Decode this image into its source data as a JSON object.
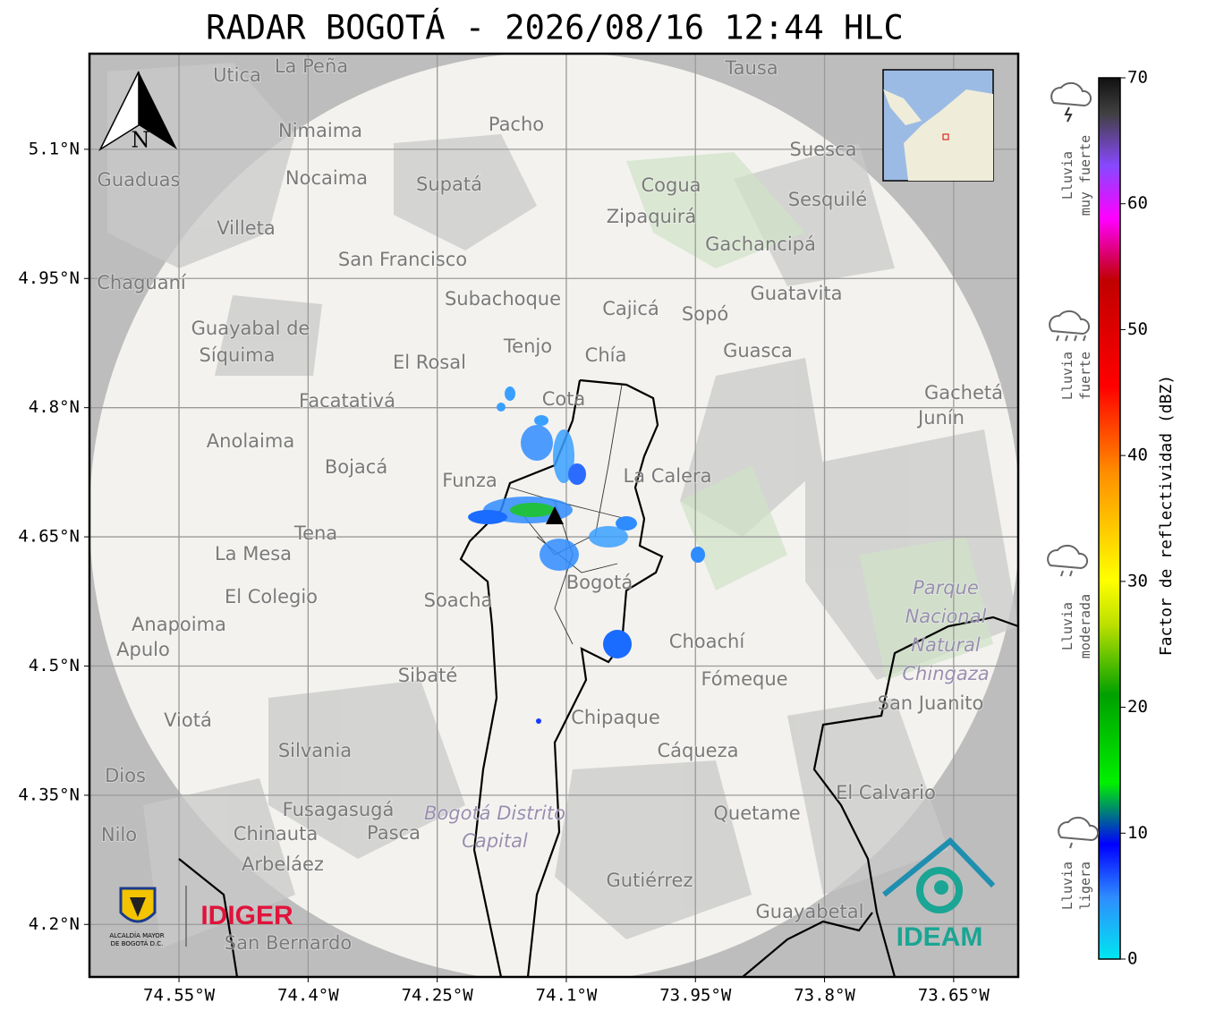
{
  "title": "RADAR BOGOTÁ - 2026/08/16 12:44 HLC",
  "map": {
    "lonlim": [
      -74.654,
      -73.575
    ],
    "latlim": [
      4.139,
      5.211
    ],
    "lon_ticks": [
      {
        "value": -74.55,
        "label": "74.55°W"
      },
      {
        "value": -74.4,
        "label": "74.4°W"
      },
      {
        "value": -74.25,
        "label": "74.25°W"
      },
      {
        "value": -74.1,
        "label": "74.1°W"
      },
      {
        "value": -73.95,
        "label": "73.95°W"
      },
      {
        "value": -73.8,
        "label": "73.8°W"
      },
      {
        "value": -73.65,
        "label": "73.65°W"
      }
    ],
    "lat_ticks": [
      {
        "value": 5.1,
        "label": "5.1°N"
      },
      {
        "value": 4.95,
        "label": "4.95°N"
      },
      {
        "value": 4.8,
        "label": "4.8°N"
      },
      {
        "value": 4.65,
        "label": "4.65°N"
      },
      {
        "value": 4.5,
        "label": "4.5°N"
      },
      {
        "value": 4.35,
        "label": "4.35°N"
      },
      {
        "value": 4.2,
        "label": "4.2°N"
      }
    ],
    "north": "N",
    "places": [
      "La Peña",
      "Utica",
      "Tausa",
      "Pacho",
      "Nimaima",
      "Nocaima",
      "Supatá",
      "Guaduas",
      "Suesca",
      "Cogua",
      "Sesquilé",
      "Zipaquirá",
      "Villeta",
      "Gachancipá",
      "San Francisco",
      "Chaguaní",
      "Guatavita",
      "Subachoque",
      "Cajicá",
      "Sopó",
      "Guayabal de",
      "Síquima",
      "Tenjo",
      "Chía",
      "Guasca",
      "El Rosal",
      "Facatativá",
      "Cota",
      "Gachetá",
      "Junín",
      "Anolaima",
      "Bojacá",
      "Funza",
      "La Calera",
      "Tena",
      "La Mesa",
      "Bogotá",
      "Soacha",
      "Parque",
      "Nacional",
      "Natural",
      "Chingaza",
      "El Colegio",
      "Anapoima",
      "Apulo",
      "Choachí",
      "Fómeque",
      "Sibaté",
      "San Juanito",
      "Viotá",
      "Chipaque",
      "Silvania",
      "Cáqueza",
      "Dios",
      "Fusagasugá",
      "Bogotá Distrito",
      "Capital",
      "Quetame",
      "El Calvario",
      "Nilo",
      "Chinauta",
      "Pasca",
      "Arbeláez",
      "Gutiérrez",
      "Guayabetal",
      "San Bernardo"
    ]
  },
  "colorbar": {
    "label": "Factor de reflectividad (dBZ)",
    "lim": [
      0,
      70
    ],
    "ticks": [
      0,
      10,
      20,
      30,
      40,
      50,
      60,
      70
    ]
  },
  "legend": [
    [
      "Lluvia",
      "muy fuerte"
    ],
    [
      "Lluvia",
      "fuerte"
    ],
    [
      "Lluvia",
      "moderada"
    ],
    [
      "Lluvia",
      "ligera"
    ]
  ],
  "logos": {
    "alcaldia": [
      "ALCALDÍA MAYOR",
      "DE BOGOTÁ D.C."
    ],
    "idiger": "IDIGER",
    "ideam": "IDEAM"
  }
}
